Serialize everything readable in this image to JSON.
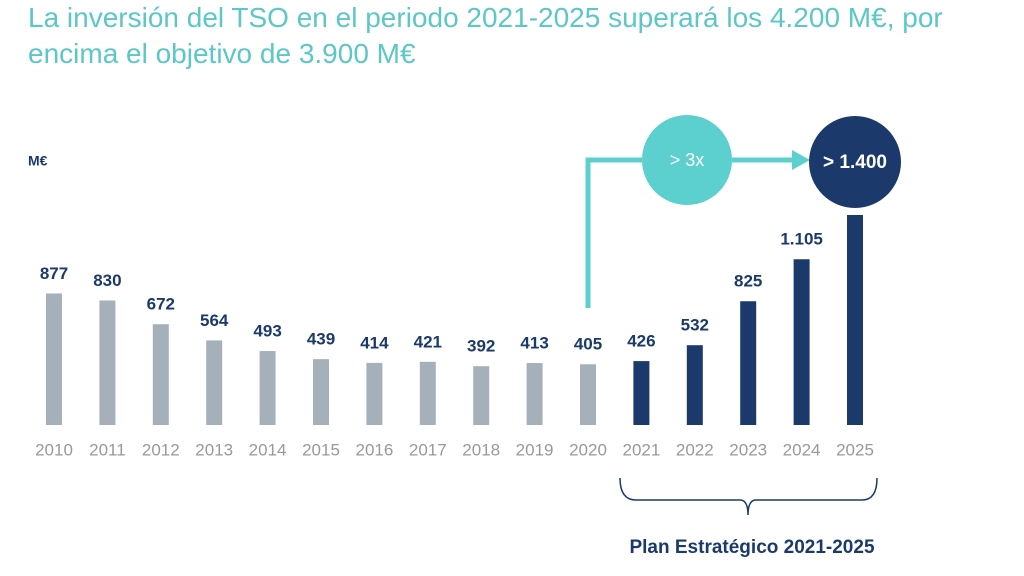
{
  "chart_data": {
    "type": "bar",
    "title": "La inversión del TSO en el periodo 2021-2025 superará los 4.200 M€, por encima el objetivo de 3.900 M€",
    "unit": "M€",
    "categories": [
      "2010",
      "2011",
      "2012",
      "2013",
      "2014",
      "2015",
      "2016",
      "2017",
      "2018",
      "2019",
      "2020",
      "2021",
      "2022",
      "2023",
      "2024",
      "2025"
    ],
    "values": [
      877,
      830,
      672,
      564,
      493,
      439,
      414,
      421,
      392,
      413,
      405,
      426,
      532,
      825,
      1105,
      1400
    ],
    "value_labels": [
      "877",
      "830",
      "672",
      "564",
      "493",
      "439",
      "414",
      "421",
      "392",
      "413",
      "405",
      "426",
      "532",
      "825",
      "1.105",
      "> 1.400"
    ],
    "colors": [
      "#a5b0bb",
      "#a5b0bb",
      "#a5b0bb",
      "#a5b0bb",
      "#a5b0bb",
      "#a5b0bb",
      "#a5b0bb",
      "#a5b0bb",
      "#a5b0bb",
      "#a5b0bb",
      "#a5b0bb",
      "#1b3a6b",
      "#1b3a6b",
      "#1b3a6b",
      "#1b3a6b",
      "#1b3a6b"
    ],
    "annotations": {
      "growth": "> 3x",
      "plan": "Plan Estratégico 2021-2025"
    }
  }
}
